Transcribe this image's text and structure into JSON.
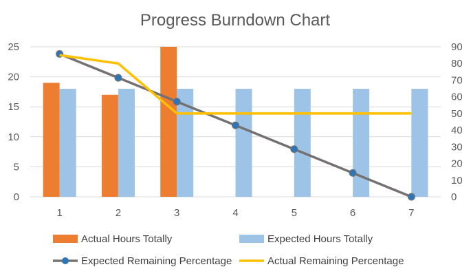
{
  "chart_data": {
    "type": "bar",
    "title": "Progress Burndown Chart",
    "categories": [
      "1",
      "2",
      "3",
      "4",
      "5",
      "6",
      "7"
    ],
    "y_left": {
      "range": [
        0,
        25
      ],
      "ticks": [
        "0",
        "5",
        "10",
        "15",
        "20",
        "25"
      ]
    },
    "y_right": {
      "range": [
        0,
        90
      ],
      "ticks": [
        "0",
        "10",
        "20",
        "30",
        "40",
        "50",
        "60",
        "70",
        "80",
        "90"
      ]
    },
    "grid": true,
    "legend_position": "bottom",
    "series": [
      {
        "name": "Actual Hours Totally",
        "type": "bar",
        "axis": "left",
        "color": "#ed7d31",
        "values": [
          19,
          17,
          25,
          null,
          null,
          null,
          null
        ]
      },
      {
        "name": "Expected Hours Totally",
        "type": "bar",
        "axis": "left",
        "color": "#9dc3e6",
        "values": [
          18,
          18,
          18,
          18,
          18,
          18,
          18
        ]
      },
      {
        "name": "Expected Remaining Percentage",
        "type": "line",
        "axis": "right",
        "color": "#767171",
        "marker_color": "#2e75b6",
        "values": [
          85.7,
          71.4,
          57.1,
          42.9,
          28.6,
          14.3,
          0
        ]
      },
      {
        "name": "Actual Remaining Percentage",
        "type": "line",
        "axis": "right",
        "color": "#ffc000",
        "values": [
          85,
          80,
          50,
          50,
          50,
          50,
          50
        ]
      }
    ]
  }
}
